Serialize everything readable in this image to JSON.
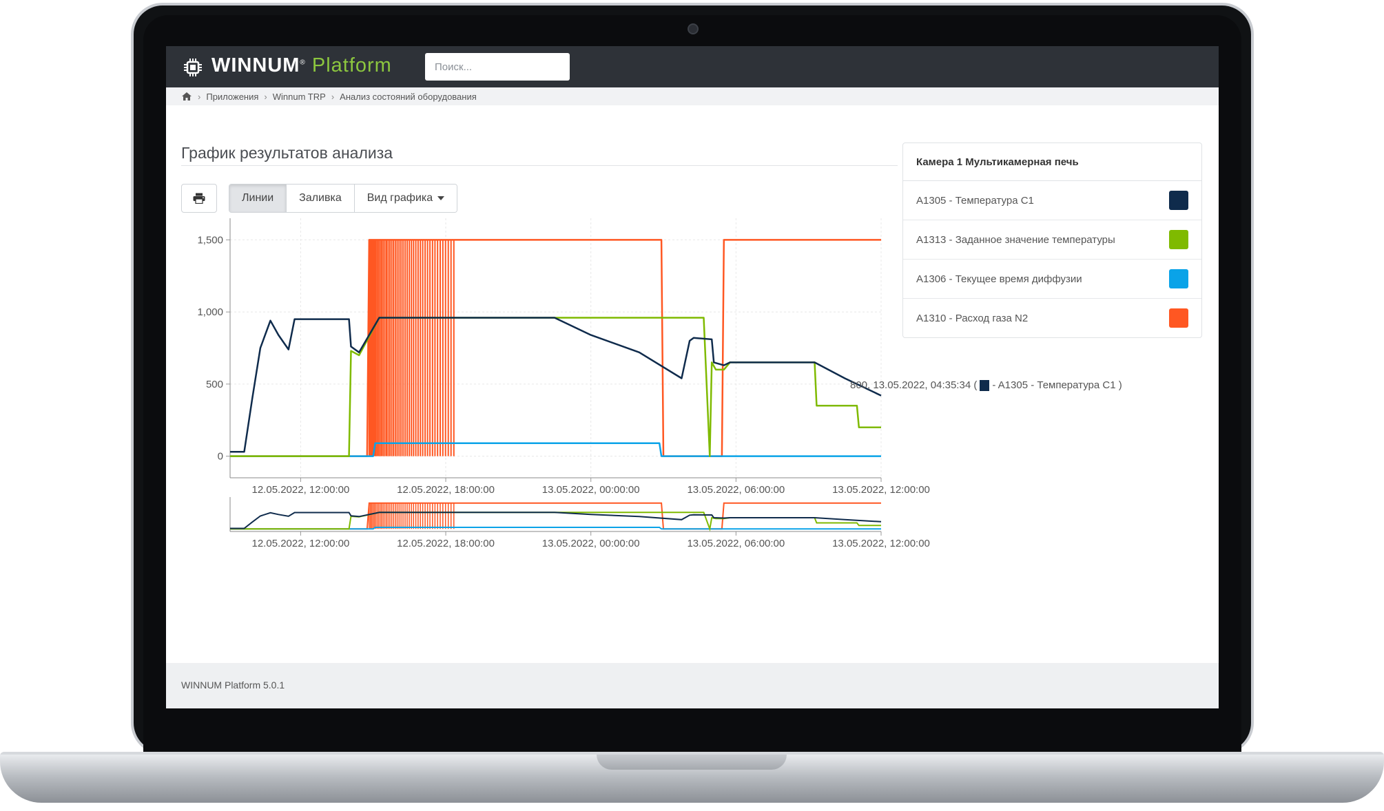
{
  "header": {
    "logo_main": "WINNUM",
    "logo_accent": "Platform",
    "search_placeholder": "Поиск..."
  },
  "breadcrumb": {
    "items": [
      "Приложения",
      "Winnum TRP",
      "Анализ состояний оборудования"
    ]
  },
  "page": {
    "title": "График результатов анализа"
  },
  "toolbar": {
    "print_icon": "print-icon",
    "buttons": [
      "Линии",
      "Заливка",
      "Вид графика"
    ],
    "active_button": "Линии"
  },
  "legend": {
    "title": "Камера 1 Мультикамерная печь",
    "items": [
      {
        "label": "A1305 - Температура C1",
        "color": "#0f2b4c"
      },
      {
        "label": "A1313 - Заданное значение температуры",
        "color": "#7fba00"
      },
      {
        "label": "A1306 - Текущее время диффузии",
        "color": "#0aa3e8"
      },
      {
        "label": "A1310 - Расход газа N2",
        "color": "#ff5722"
      }
    ]
  },
  "tooltip": {
    "prefix": "800, 13.05.2022, 04:35:34 (",
    "suffix": "- A1305 - Температура C1 )"
  },
  "footer": {
    "text": "WINNUM Platform 5.0.1"
  },
  "chart_data": {
    "type": "line",
    "ylim": [
      -150,
      1650
    ],
    "yticks": [
      0,
      500,
      1000,
      1500
    ],
    "ytick_labels": [
      "0",
      "500",
      "1,000",
      "1,500"
    ],
    "xlim": [
      "12.05.2022, 09:05:00",
      "13.05.2022, 12:00:00"
    ],
    "xticks": [
      "12.05.2022, 12:00:00",
      "12.05.2022, 18:00:00",
      "13.05.2022, 00:00:00",
      "13.05.2022, 06:00:00",
      "13.05.2022, 12:00:00"
    ],
    "grid": true,
    "navigator": true,
    "series": [
      {
        "name": "A1305 - Температура C1",
        "color": "#0f2b4c",
        "points": [
          [
            "12.05.2022, 09:05:00",
            30
          ],
          [
            "12.05.2022, 09:40:00",
            30
          ],
          [
            "12.05.2022, 10:00:00",
            400
          ],
          [
            "12.05.2022, 10:20:00",
            750
          ],
          [
            "12.05.2022, 10:45:00",
            940
          ],
          [
            "12.05.2022, 11:05:00",
            840
          ],
          [
            "12.05.2022, 11:30:00",
            740
          ],
          [
            "12.05.2022, 11:45:00",
            950
          ],
          [
            "12.05.2022, 14:00:00",
            950
          ],
          [
            "12.05.2022, 14:05:00",
            760
          ],
          [
            "12.05.2022, 14:25:00",
            720
          ],
          [
            "12.05.2022, 15:15:00",
            960
          ],
          [
            "12.05.2022, 21:00:00",
            960
          ],
          [
            "12.05.2022, 22:30:00",
            960
          ],
          [
            "13.05.2022, 00:00:00",
            840
          ],
          [
            "13.05.2022, 02:00:00",
            720
          ],
          [
            "13.05.2022, 03:45:00",
            540
          ],
          [
            "13.05.2022, 04:05:00",
            800
          ],
          [
            "13.05.2022, 04:15:00",
            820
          ],
          [
            "13.05.2022, 05:00:00",
            810
          ],
          [
            "13.05.2022, 05:05:00",
            650
          ],
          [
            "13.05.2022, 05:30:00",
            630
          ],
          [
            "13.05.2022, 05:45:00",
            650
          ],
          [
            "13.05.2022, 09:15:00",
            650
          ],
          [
            "13.05.2022, 10:30:00",
            540
          ],
          [
            "13.05.2022, 12:00:00",
            420
          ]
        ]
      },
      {
        "name": "A1313 - Заданное значение температуры",
        "color": "#7fba00",
        "points": [
          [
            "12.05.2022, 09:05:00",
            0
          ],
          [
            "12.05.2022, 14:00:00",
            0
          ],
          [
            "12.05.2022, 14:05:00",
            730
          ],
          [
            "12.05.2022, 14:25:00",
            700
          ],
          [
            "12.05.2022, 15:15:00",
            960
          ],
          [
            "12.05.2022, 21:00:00",
            960
          ],
          [
            "13.05.2022, 04:40:00",
            960
          ],
          [
            "13.05.2022, 04:55:00",
            0
          ],
          [
            "13.05.2022, 05:00:00",
            650
          ],
          [
            "13.05.2022, 05:10:00",
            600
          ],
          [
            "13.05.2022, 05:30:00",
            600
          ],
          [
            "13.05.2022, 05:45:00",
            650
          ],
          [
            "13.05.2022, 09:15:00",
            650
          ],
          [
            "13.05.2022, 09:20:00",
            350
          ],
          [
            "13.05.2022, 11:00:00",
            350
          ],
          [
            "13.05.2022, 11:05:00",
            200
          ],
          [
            "13.05.2022, 12:00:00",
            200
          ]
        ]
      },
      {
        "name": "A1306 - Текущее время диффузии",
        "color": "#0aa3e8",
        "points": [
          [
            "12.05.2022, 09:05:00",
            0
          ],
          [
            "12.05.2022, 15:00:00",
            0
          ],
          [
            "12.05.2022, 15:05:00",
            90
          ],
          [
            "13.05.2022, 02:50:00",
            90
          ],
          [
            "13.05.2022, 02:55:00",
            0
          ],
          [
            "13.05.2022, 12:00:00",
            0
          ]
        ]
      },
      {
        "name": "A1310 - Расход газа N2",
        "color": "#ff5722",
        "points": [
          [
            "12.05.2022, 09:05:00",
            0
          ],
          [
            "12.05.2022, 14:45:00",
            0
          ],
          [
            "12.05.2022, 14:50:00",
            1500
          ],
          [
            "12.05.2022, 18:00:00",
            1500
          ],
          [
            "13.05.2022, 02:55:00",
            1500
          ],
          [
            "13.05.2022, 03:00:00",
            0
          ],
          [
            "13.05.2022, 05:25:00",
            0
          ],
          [
            "13.05.2022, 05:30:00",
            1500
          ],
          [
            "13.05.2022, 12:00:00",
            1500
          ]
        ],
        "burst": {
          "from": "12.05.2022, 14:50:00",
          "to": "12.05.2022, 18:20:00",
          "low": 0,
          "high": 1500
        }
      }
    ]
  }
}
